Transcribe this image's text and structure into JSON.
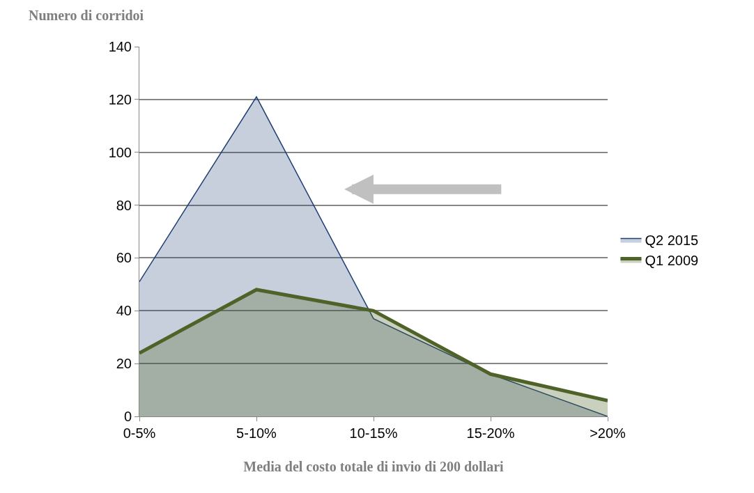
{
  "chart_data": {
    "type": "area",
    "xlabel": "Media del costo totale di invio di 200 dollari",
    "ylabel": "Numero di corridoi",
    "categories": [
      "0-5%",
      "5-10%",
      "10-15%",
      "15-20%",
      ">20%"
    ],
    "series": [
      {
        "name": "Q2 2015",
        "color": "#1f3f73",
        "values": [
          51,
          121,
          37,
          16,
          0
        ]
      },
      {
        "name": "Q1 2009",
        "color": "#4f6228",
        "values": [
          24,
          48,
          40,
          16,
          6
        ]
      }
    ],
    "ylim": [
      0,
      140
    ],
    "yticks": [
      0,
      20,
      40,
      60,
      80,
      100,
      120,
      140
    ],
    "grid": "y",
    "legend": "right"
  }
}
